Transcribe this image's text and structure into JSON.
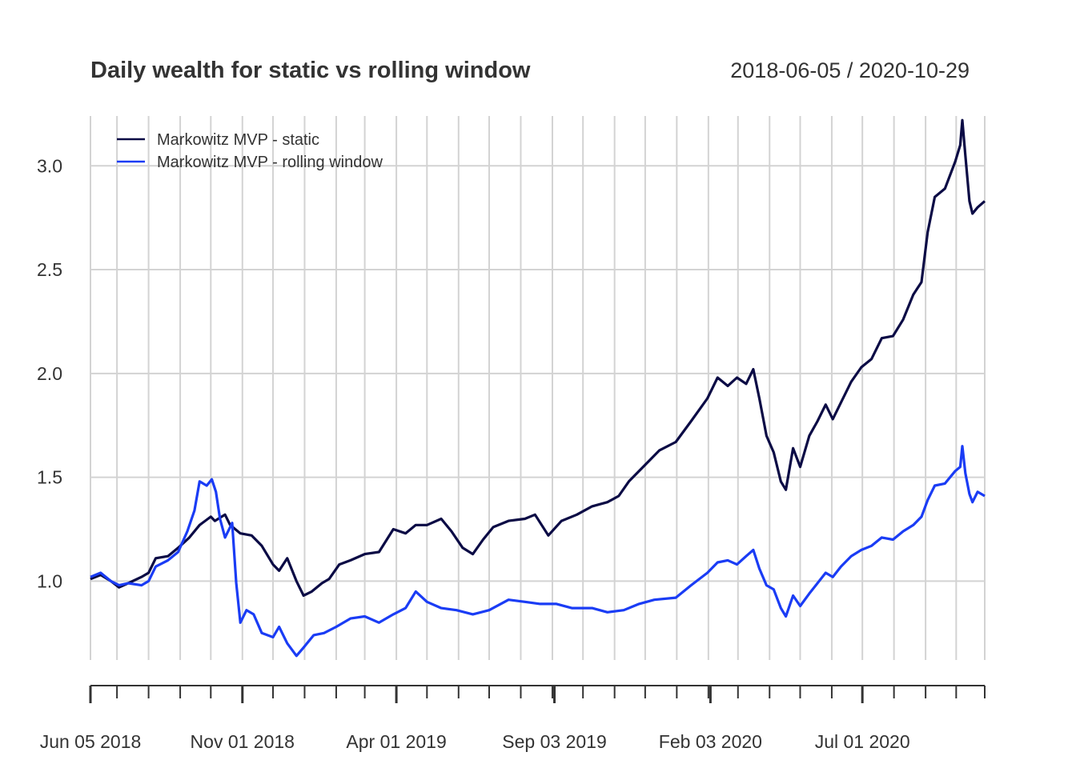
{
  "chart_data": {
    "type": "line",
    "title": "Daily wealth for static vs rolling window",
    "date_range_label": "2018-06-05 / 2020-10-29",
    "x_start": "2018-06-05",
    "x_end": "2020-10-29",
    "ylim": [
      0.62,
      3.24
    ],
    "y_ticks": [
      1.0,
      1.5,
      2.0,
      2.5,
      3.0
    ],
    "y_tick_labels": [
      "1.0",
      "1.5",
      "2.0",
      "2.5",
      "3.0"
    ],
    "x_tick_labels": [
      {
        "date": "2018-06-05",
        "label": "Jun 05 2018"
      },
      {
        "date": "2018-11-01",
        "label": "Nov 01 2018"
      },
      {
        "date": "2019-04-01",
        "label": "Apr 01 2019"
      },
      {
        "date": "2019-09-03",
        "label": "Sep 03 2019"
      },
      {
        "date": "2020-02-03",
        "label": "Feb 03 2020"
      },
      {
        "date": "2020-07-01",
        "label": "Jul 01 2020"
      }
    ],
    "grid": true,
    "legend_position": "top-left",
    "series": [
      {
        "name": "Markowitz MVP - static",
        "color": "#0b0b45",
        "points": [
          [
            "2018-06-05",
            1.01
          ],
          [
            "2018-06-15",
            1.03
          ],
          [
            "2018-06-25",
            1.0
          ],
          [
            "2018-07-03",
            0.97
          ],
          [
            "2018-07-12",
            0.99
          ],
          [
            "2018-07-25",
            1.02
          ],
          [
            "2018-08-01",
            1.04
          ],
          [
            "2018-08-08",
            1.11
          ],
          [
            "2018-08-20",
            1.12
          ],
          [
            "2018-08-30",
            1.16
          ],
          [
            "2018-09-10",
            1.21
          ],
          [
            "2018-09-20",
            1.27
          ],
          [
            "2018-10-01",
            1.31
          ],
          [
            "2018-10-05",
            1.29
          ],
          [
            "2018-10-15",
            1.32
          ],
          [
            "2018-10-20",
            1.27
          ],
          [
            "2018-10-30",
            1.23
          ],
          [
            "2018-11-10",
            1.22
          ],
          [
            "2018-11-20",
            1.17
          ],
          [
            "2018-12-01",
            1.08
          ],
          [
            "2018-12-07",
            1.05
          ],
          [
            "2018-12-15",
            1.11
          ],
          [
            "2018-12-24",
            1.0
          ],
          [
            "2018-12-31",
            0.93
          ],
          [
            "2019-01-08",
            0.95
          ],
          [
            "2019-01-18",
            0.99
          ],
          [
            "2019-01-25",
            1.01
          ],
          [
            "2019-02-04",
            1.08
          ],
          [
            "2019-02-15",
            1.1
          ],
          [
            "2019-03-01",
            1.13
          ],
          [
            "2019-03-15",
            1.14
          ],
          [
            "2019-03-29",
            1.25
          ],
          [
            "2019-04-10",
            1.23
          ],
          [
            "2019-04-20",
            1.27
          ],
          [
            "2019-05-01",
            1.27
          ],
          [
            "2019-05-15",
            1.3
          ],
          [
            "2019-05-25",
            1.24
          ],
          [
            "2019-06-05",
            1.16
          ],
          [
            "2019-06-15",
            1.13
          ],
          [
            "2019-06-25",
            1.2
          ],
          [
            "2019-07-05",
            1.26
          ],
          [
            "2019-07-20",
            1.29
          ],
          [
            "2019-08-05",
            1.3
          ],
          [
            "2019-08-15",
            1.32
          ],
          [
            "2019-08-28",
            1.22
          ],
          [
            "2019-09-10",
            1.29
          ],
          [
            "2019-09-25",
            1.32
          ],
          [
            "2019-10-10",
            1.36
          ],
          [
            "2019-10-25",
            1.38
          ],
          [
            "2019-11-05",
            1.41
          ],
          [
            "2019-11-15",
            1.48
          ],
          [
            "2019-12-01",
            1.56
          ],
          [
            "2019-12-15",
            1.63
          ],
          [
            "2019-12-31",
            1.67
          ],
          [
            "2020-01-15",
            1.77
          ],
          [
            "2020-01-31",
            1.88
          ],
          [
            "2020-02-10",
            1.98
          ],
          [
            "2020-02-20",
            1.94
          ],
          [
            "2020-02-29",
            1.98
          ],
          [
            "2020-03-09",
            1.95
          ],
          [
            "2020-03-16",
            2.02
          ],
          [
            "2020-03-22",
            1.88
          ],
          [
            "2020-03-29",
            1.7
          ],
          [
            "2020-04-05",
            1.62
          ],
          [
            "2020-04-12",
            1.48
          ],
          [
            "2020-04-17",
            1.44
          ],
          [
            "2020-04-24",
            1.64
          ],
          [
            "2020-05-01",
            1.55
          ],
          [
            "2020-05-10",
            1.7
          ],
          [
            "2020-05-18",
            1.77
          ],
          [
            "2020-05-26",
            1.85
          ],
          [
            "2020-06-02",
            1.78
          ],
          [
            "2020-06-10",
            1.86
          ],
          [
            "2020-06-20",
            1.96
          ],
          [
            "2020-06-30",
            2.03
          ],
          [
            "2020-07-10",
            2.07
          ],
          [
            "2020-07-20",
            2.17
          ],
          [
            "2020-07-31",
            2.18
          ],
          [
            "2020-08-10",
            2.26
          ],
          [
            "2020-08-20",
            2.38
          ],
          [
            "2020-08-28",
            2.44
          ],
          [
            "2020-09-03",
            2.68
          ],
          [
            "2020-09-10",
            2.85
          ],
          [
            "2020-09-20",
            2.89
          ],
          [
            "2020-09-30",
            3.02
          ],
          [
            "2020-10-05",
            3.1
          ],
          [
            "2020-10-07",
            3.22
          ],
          [
            "2020-10-10",
            3.05
          ],
          [
            "2020-10-14",
            2.83
          ],
          [
            "2020-10-17",
            2.77
          ],
          [
            "2020-10-22",
            2.8
          ],
          [
            "2020-10-29",
            2.83
          ]
        ]
      },
      {
        "name": "Markowitz MVP - rolling window",
        "color": "#1a3cf5",
        "points": [
          [
            "2018-06-05",
            1.02
          ],
          [
            "2018-06-15",
            1.04
          ],
          [
            "2018-06-25",
            1.0
          ],
          [
            "2018-07-03",
            0.98
          ],
          [
            "2018-07-12",
            0.99
          ],
          [
            "2018-07-25",
            0.98
          ],
          [
            "2018-08-01",
            1.0
          ],
          [
            "2018-08-08",
            1.07
          ],
          [
            "2018-08-20",
            1.1
          ],
          [
            "2018-08-30",
            1.14
          ],
          [
            "2018-09-08",
            1.24
          ],
          [
            "2018-09-15",
            1.34
          ],
          [
            "2018-09-20",
            1.48
          ],
          [
            "2018-09-27",
            1.46
          ],
          [
            "2018-10-02",
            1.49
          ],
          [
            "2018-10-06",
            1.43
          ],
          [
            "2018-10-10",
            1.3
          ],
          [
            "2018-10-15",
            1.21
          ],
          [
            "2018-10-22",
            1.28
          ],
          [
            "2018-10-26",
            0.99
          ],
          [
            "2018-10-30",
            0.8
          ],
          [
            "2018-11-05",
            0.86
          ],
          [
            "2018-11-12",
            0.84
          ],
          [
            "2018-11-20",
            0.75
          ],
          [
            "2018-12-01",
            0.73
          ],
          [
            "2018-12-07",
            0.78
          ],
          [
            "2018-12-15",
            0.7
          ],
          [
            "2018-12-24",
            0.64
          ],
          [
            "2018-12-31",
            0.68
          ],
          [
            "2019-01-10",
            0.74
          ],
          [
            "2019-01-20",
            0.75
          ],
          [
            "2019-02-01",
            0.78
          ],
          [
            "2019-02-15",
            0.82
          ],
          [
            "2019-03-01",
            0.83
          ],
          [
            "2019-03-15",
            0.8
          ],
          [
            "2019-03-29",
            0.84
          ],
          [
            "2019-04-10",
            0.87
          ],
          [
            "2019-04-20",
            0.95
          ],
          [
            "2019-05-01",
            0.9
          ],
          [
            "2019-05-15",
            0.87
          ],
          [
            "2019-05-30",
            0.86
          ],
          [
            "2019-06-15",
            0.84
          ],
          [
            "2019-07-01",
            0.86
          ],
          [
            "2019-07-20",
            0.91
          ],
          [
            "2019-08-05",
            0.9
          ],
          [
            "2019-08-20",
            0.89
          ],
          [
            "2019-09-05",
            0.89
          ],
          [
            "2019-09-20",
            0.87
          ],
          [
            "2019-10-10",
            0.87
          ],
          [
            "2019-10-25",
            0.85
          ],
          [
            "2019-11-10",
            0.86
          ],
          [
            "2019-11-25",
            0.89
          ],
          [
            "2019-12-10",
            0.91
          ],
          [
            "2019-12-31",
            0.92
          ],
          [
            "2020-01-15",
            0.98
          ],
          [
            "2020-01-31",
            1.04
          ],
          [
            "2020-02-10",
            1.09
          ],
          [
            "2020-02-20",
            1.1
          ],
          [
            "2020-02-29",
            1.08
          ],
          [
            "2020-03-09",
            1.12
          ],
          [
            "2020-03-16",
            1.15
          ],
          [
            "2020-03-22",
            1.06
          ],
          [
            "2020-03-29",
            0.98
          ],
          [
            "2020-04-05",
            0.96
          ],
          [
            "2020-04-12",
            0.87
          ],
          [
            "2020-04-17",
            0.83
          ],
          [
            "2020-04-24",
            0.93
          ],
          [
            "2020-05-01",
            0.88
          ],
          [
            "2020-05-10",
            0.94
          ],
          [
            "2020-05-18",
            0.99
          ],
          [
            "2020-05-26",
            1.04
          ],
          [
            "2020-06-02",
            1.02
          ],
          [
            "2020-06-10",
            1.07
          ],
          [
            "2020-06-20",
            1.12
          ],
          [
            "2020-06-30",
            1.15
          ],
          [
            "2020-07-10",
            1.17
          ],
          [
            "2020-07-20",
            1.21
          ],
          [
            "2020-07-31",
            1.2
          ],
          [
            "2020-08-10",
            1.24
          ],
          [
            "2020-08-20",
            1.27
          ],
          [
            "2020-08-28",
            1.31
          ],
          [
            "2020-09-03",
            1.39
          ],
          [
            "2020-09-10",
            1.46
          ],
          [
            "2020-09-20",
            1.47
          ],
          [
            "2020-09-30",
            1.53
          ],
          [
            "2020-10-05",
            1.55
          ],
          [
            "2020-10-07",
            1.65
          ],
          [
            "2020-10-10",
            1.52
          ],
          [
            "2020-10-14",
            1.42
          ],
          [
            "2020-10-17",
            1.38
          ],
          [
            "2020-10-22",
            1.43
          ],
          [
            "2020-10-29",
            1.41
          ]
        ]
      }
    ]
  }
}
